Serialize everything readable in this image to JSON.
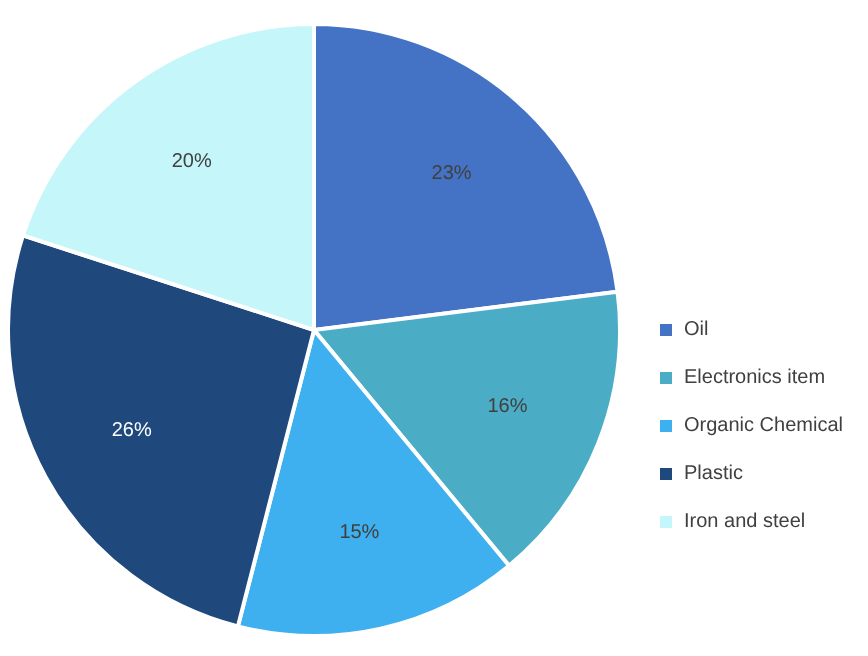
{
  "chart_data": {
    "type": "pie",
    "categories": [
      "Oil",
      "Electronics item",
      "Organic Chemical",
      "Plastic",
      "Iron and steel"
    ],
    "values": [
      23,
      16,
      15,
      26,
      20
    ],
    "colors": [
      "#4472c4",
      "#4bacc6",
      "#3fb0ef",
      "#1f497d",
      "#c5f6fa"
    ],
    "value_labels": [
      "23%",
      "16%",
      "15%",
      "26%",
      "20%"
    ],
    "legend": "right"
  }
}
